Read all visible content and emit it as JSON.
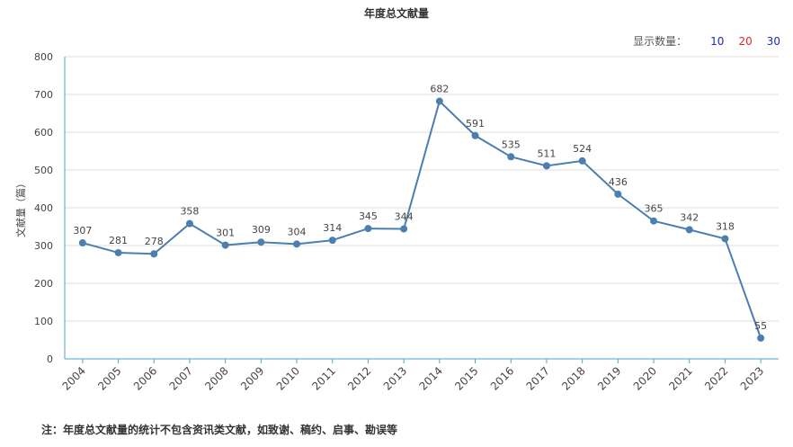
{
  "header": {
    "count_label": "显示数量：",
    "count_options": [
      {
        "label": "10",
        "color": "#1a2bb8"
      },
      {
        "label": "20",
        "color": "#d9262b"
      },
      {
        "label": "30",
        "color": "#1a2bb8"
      }
    ]
  },
  "footer": {
    "note": "注：年度总文献量的统计不包含资讯类文献，如致谢、稿约、启事、勘误等"
  },
  "chart_data": {
    "type": "line",
    "title": "年度总文献量",
    "xlabel": "",
    "ylabel": "文献量（篇）",
    "categories": [
      "2004",
      "2005",
      "2006",
      "2007",
      "2008",
      "2009",
      "2010",
      "2011",
      "2012",
      "2013",
      "2014",
      "2015",
      "2016",
      "2017",
      "2018",
      "2019",
      "2020",
      "2021",
      "2022",
      "2023"
    ],
    "series": [
      {
        "values": [
          307,
          281,
          278,
          358,
          301,
          309,
          304,
          314,
          345,
          344,
          682,
          591,
          535,
          511,
          524,
          436,
          365,
          342,
          318,
          55
        ]
      }
    ],
    "ylim": [
      0,
      800
    ],
    "yticks": [
      0,
      100,
      200,
      300,
      400,
      500,
      600,
      700,
      800
    ],
    "grid": true,
    "line_color": "#4a7fb0",
    "axis_color": "#4aa6c9"
  }
}
